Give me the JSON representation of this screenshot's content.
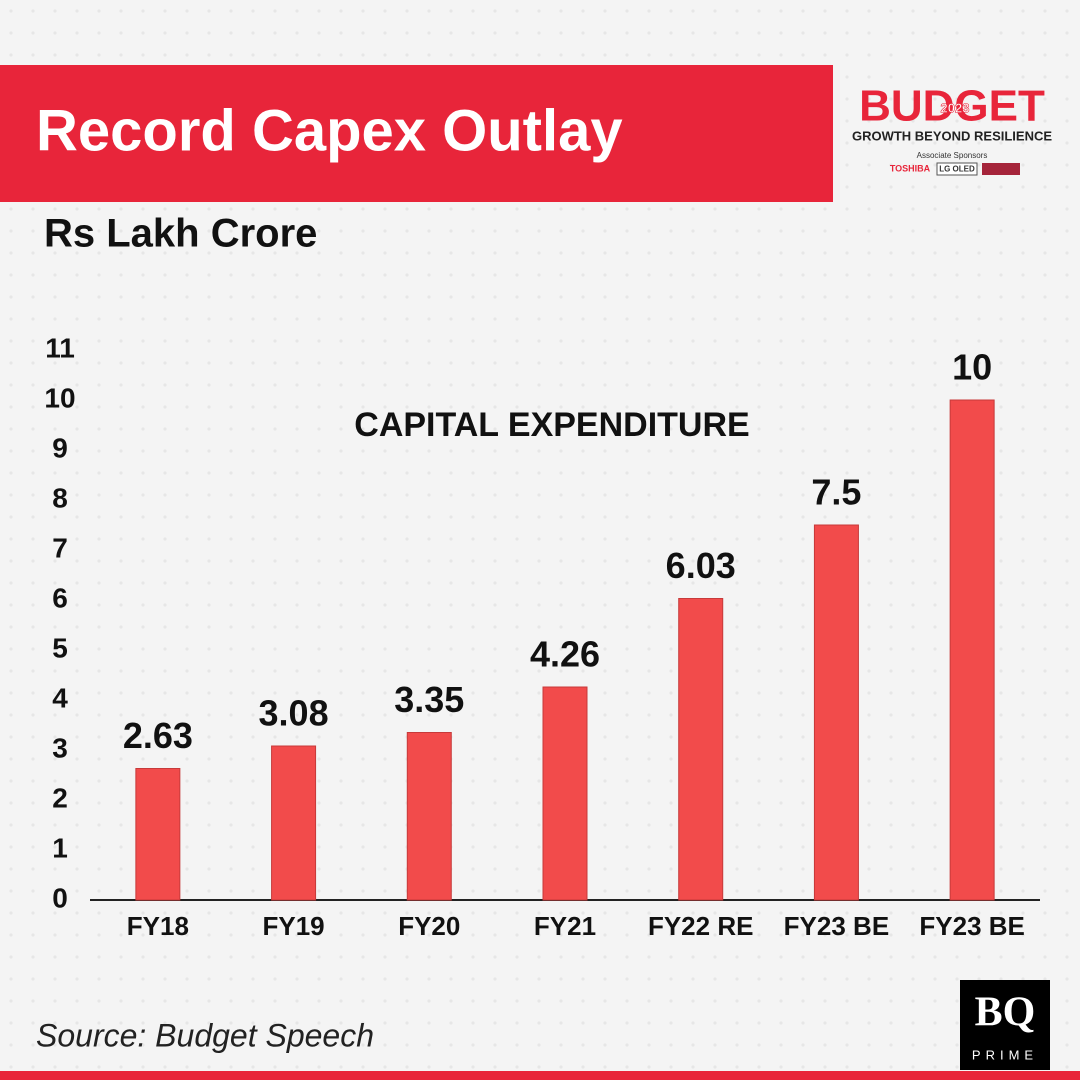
{
  "chart_data": {
    "type": "bar",
    "title": "Record Capex Outlay",
    "y_label": "Rs Lakh Crore",
    "annotation": "CAPITAL EXPENDITURE",
    "categories": [
      "FY18",
      "FY19",
      "FY20",
      "FY21",
      "FY22 RE",
      "FY23 BE",
      "FY23 BE"
    ],
    "values": [
      2.63,
      3.08,
      3.35,
      4.26,
      6.03,
      7.5,
      10
    ],
    "color": "#f24b4b",
    "ylim": [
      0,
      11
    ],
    "yticks": [
      0,
      1,
      2,
      3,
      4,
      5,
      6,
      7,
      8,
      9,
      10,
      11
    ],
    "grid": false
  },
  "source": "Source: Budget Speech",
  "logo": {
    "word": "BUDGET",
    "year": "2023",
    "tagline": "GROWTH BEYOND RESILIENCE",
    "sponsor_label": "Associate Sponsors",
    "sponsors": [
      "TOSHIBA",
      "LG OLED"
    ]
  },
  "publisher": {
    "mark": "BQ",
    "name": "PRIME"
  }
}
